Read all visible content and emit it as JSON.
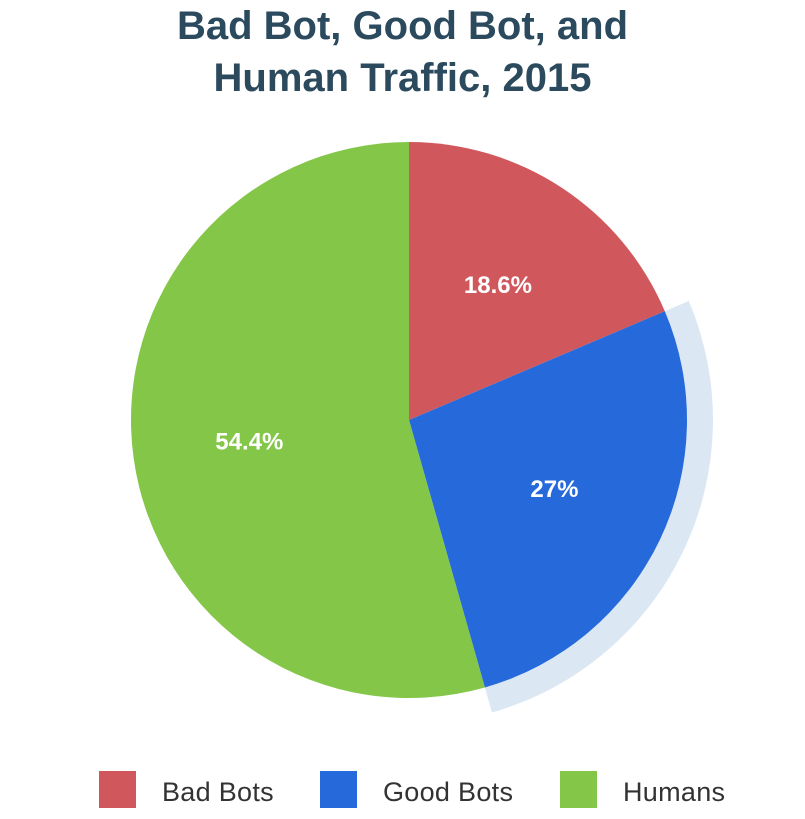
{
  "title": {
    "line1": "Bad Bot, Good Bot, and",
    "line2": "Human Traffic, 2015"
  },
  "chart_data": {
    "type": "pie",
    "title": "Bad Bot, Good Bot, and Human Traffic, 2015",
    "start_angle_deg": 0,
    "direction": "clockwise",
    "highlighted_slice": "Good Bots",
    "slices": [
      {
        "name": "Bad Bots",
        "value": 18.6,
        "label": "18.6%",
        "color": "#d0585d"
      },
      {
        "name": "Good Bots",
        "value": 27,
        "label": "27%",
        "color": "#2569db"
      },
      {
        "name": "Humans",
        "value": 54.4,
        "label": "54.4%",
        "color": "#84c748"
      }
    ],
    "highlight_color": "#dbe8f4",
    "legend_position": "bottom"
  },
  "legend": {
    "items": [
      {
        "label": "Bad Bots",
        "color": "#d0585d"
      },
      {
        "label": "Good Bots",
        "color": "#2569db"
      },
      {
        "label": "Humans",
        "color": "#84c748"
      }
    ]
  }
}
